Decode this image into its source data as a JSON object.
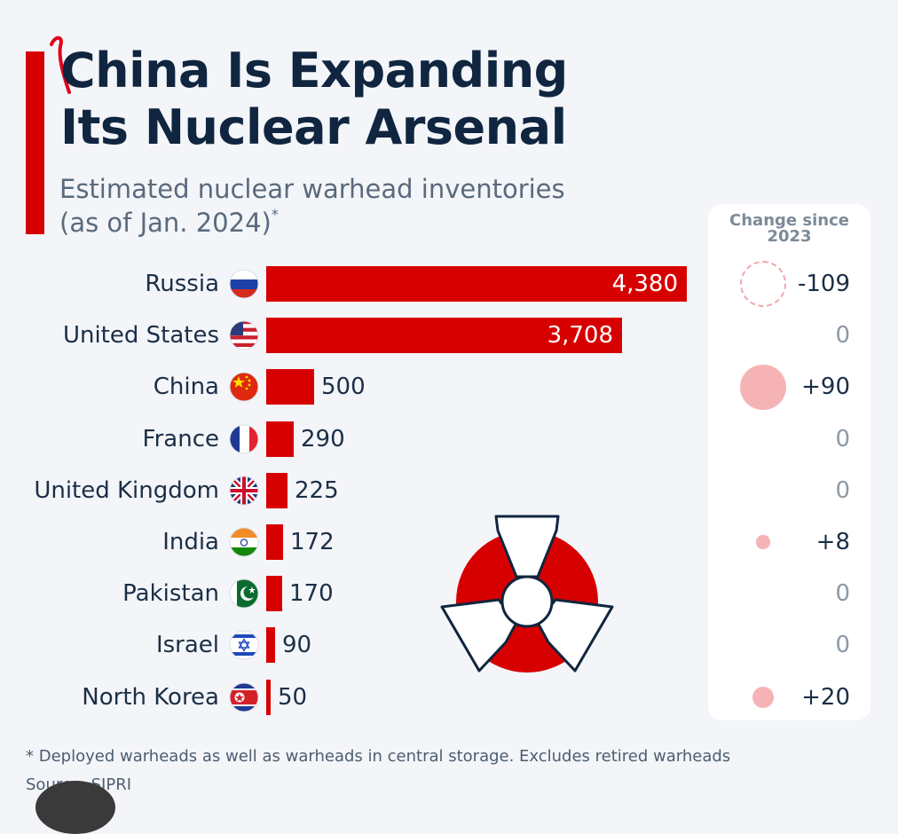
{
  "chart_data": {
    "type": "bar",
    "orientation": "horizontal",
    "title_lines": [
      "China Is Expanding",
      "Its Nuclear Arsenal"
    ],
    "subtitle_lines": [
      "Estimated nuclear warhead inventories",
      "(as of Jan. 2024)"
    ],
    "subtitle_mark": "*",
    "change_header": "Change since 2023",
    "categories": [
      "Russia",
      "United States",
      "China",
      "France",
      "United Kingdom",
      "India",
      "Pakistan",
      "Israel",
      "North Korea"
    ],
    "values": [
      4380,
      3708,
      500,
      290,
      225,
      172,
      170,
      90,
      50
    ],
    "value_labels": [
      "4,380",
      "3,708",
      "500",
      "290",
      "225",
      "172",
      "170",
      "90",
      "50"
    ],
    "change_since_2023": [
      -109,
      0,
      90,
      0,
      0,
      8,
      0,
      0,
      20
    ],
    "change_labels": [
      "-109",
      "0",
      "+90",
      "0",
      "0",
      "+8",
      "0",
      "0",
      "+20"
    ],
    "flags": [
      "russia-flag",
      "united-states-flag",
      "china-flag",
      "france-flag",
      "united-kingdom-flag",
      "india-flag",
      "pakistan-flag",
      "israel-flag",
      "north-korea-flag"
    ],
    "xlim": [
      0,
      4400
    ],
    "grid": false
  },
  "colors": {
    "bar": "#d70000",
    "accent": "#d70000",
    "title": "#10253f",
    "change_positive": "#f5b3b6",
    "change_negative": "#f0a8ab",
    "zero_text": "#8d99a6"
  },
  "footnote": "* Deployed warheads as well as warheads in central storage. Excludes retired warheads",
  "source": "Source: SIPRI",
  "decor": {
    "icon": "radiation-icon"
  }
}
